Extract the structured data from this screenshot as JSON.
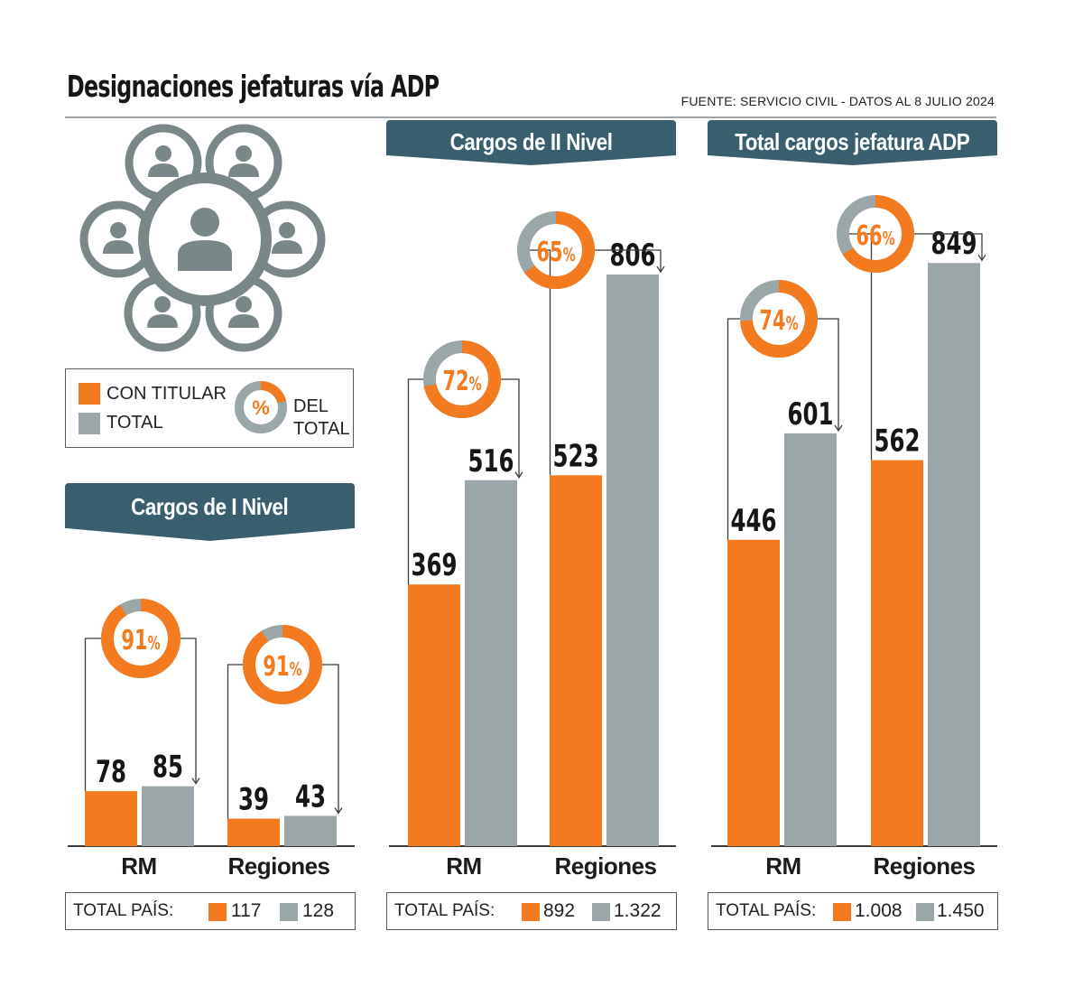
{
  "title": "Designaciones jefaturas vía ADP",
  "source": "FUENTE: SERVICIO CIVIL - DATOS AL 8 JULIO 2024",
  "colors": {
    "con_titular": "#f47a20",
    "total": "#9aa6a7",
    "banner": "#395f6e",
    "axis": "#3a3a3a"
  },
  "icon": "people-network-icon",
  "legend": {
    "con_titular": "CON TITULAR",
    "total": "TOTAL",
    "pct_symbol": "%",
    "pct_label_1": "DEL",
    "pct_label_2": "TOTAL"
  },
  "total_pais_label": "TOTAL PAÍS:",
  "chart_data": [
    {
      "type": "bar",
      "title": "Cargos de I Nivel",
      "categories": [
        "RM",
        "Regiones"
      ],
      "series": [
        {
          "name": "CON TITULAR",
          "values": [
            78,
            39
          ]
        },
        {
          "name": "TOTAL",
          "values": [
            85,
            43
          ]
        }
      ],
      "percent_of_total": [
        "91",
        "91"
      ],
      "total_pais": {
        "con_titular": "117",
        "total": "128"
      }
    },
    {
      "type": "bar",
      "title": "Cargos de II Nivel",
      "categories": [
        "RM",
        "Regiones"
      ],
      "series": [
        {
          "name": "CON TITULAR",
          "values": [
            369,
            523
          ]
        },
        {
          "name": "TOTAL",
          "values": [
            516,
            806
          ]
        }
      ],
      "percent_of_total": [
        "72",
        "65"
      ],
      "total_pais": {
        "con_titular": "892",
        "total": "1.322"
      }
    },
    {
      "type": "bar",
      "title": "Total cargos jefatura ADP",
      "categories": [
        "RM",
        "Regiones"
      ],
      "series": [
        {
          "name": "CON TITULAR",
          "values": [
            446,
            562
          ]
        },
        {
          "name": "TOTAL",
          "values": [
            601,
            849
          ]
        }
      ],
      "percent_of_total": [
        "74",
        "66"
      ],
      "total_pais": {
        "con_titular": "1.008",
        "total": "1.450"
      }
    }
  ]
}
